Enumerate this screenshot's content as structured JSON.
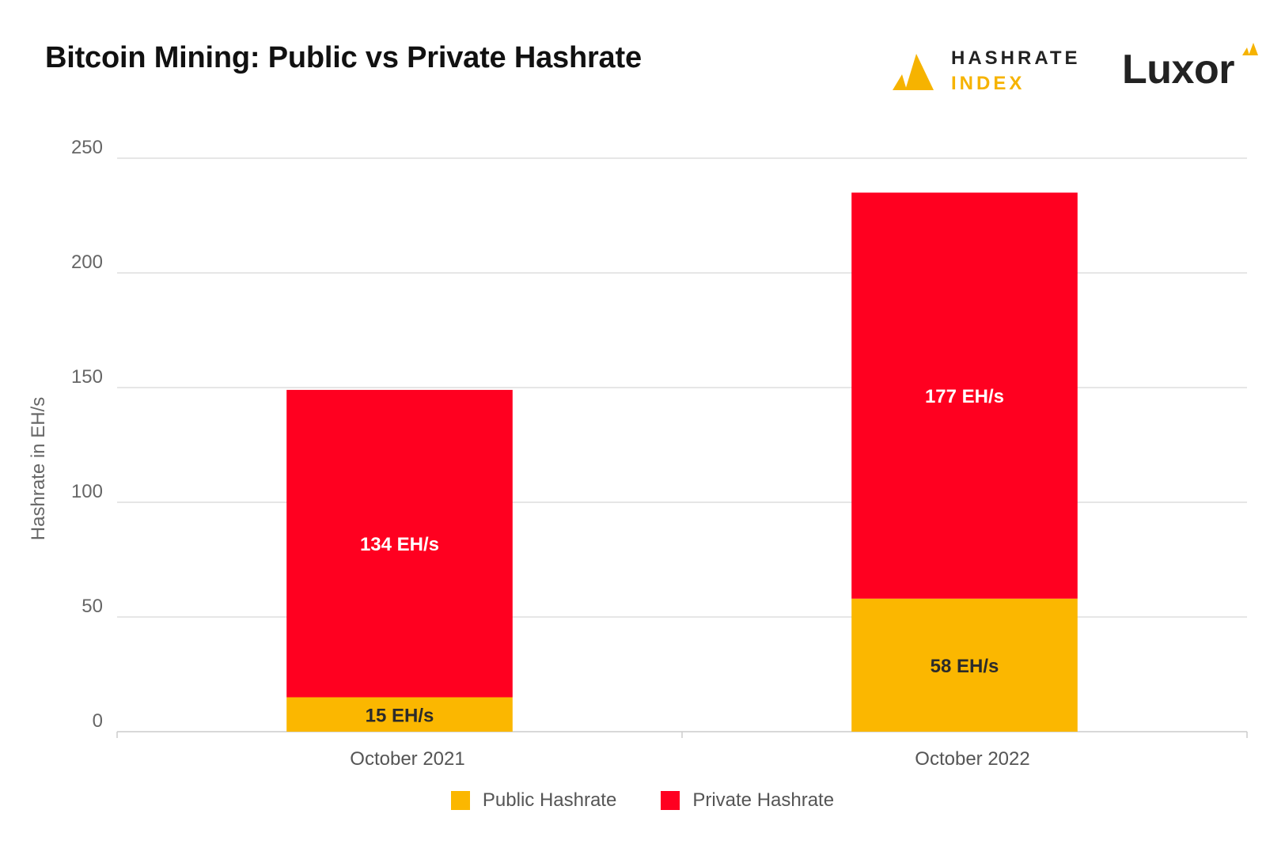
{
  "title": "Bitcoin Mining: Public vs Private Hashrate",
  "logos": {
    "hashrate_index": [
      "HASHRATE",
      "INDEX"
    ],
    "luxor": "Luxor"
  },
  "colors": {
    "public": "#fbb700",
    "private": "#ff0020",
    "public_label_text": "#2b2b2b",
    "private_label_text": "#ffffff",
    "grid": "#dddddd"
  },
  "chart_data": {
    "type": "bar",
    "stacked": true,
    "categories": [
      "October 2021",
      "October 2022"
    ],
    "series": [
      {
        "name": "Public Hashrate",
        "values": [
          15,
          58
        ],
        "labels": [
          "15 EH/s",
          "58 EH/s"
        ]
      },
      {
        "name": "Private Hashrate",
        "values": [
          134,
          177
        ],
        "labels": [
          "134 EH/s",
          "177 EH/s"
        ]
      }
    ],
    "ylabel": "Hashrate in EH/s",
    "xlabel": "",
    "ylim": [
      0,
      250
    ],
    "yticks": [
      0,
      50,
      100,
      150,
      200,
      250
    ],
    "grid": true,
    "legend_position": "bottom"
  }
}
